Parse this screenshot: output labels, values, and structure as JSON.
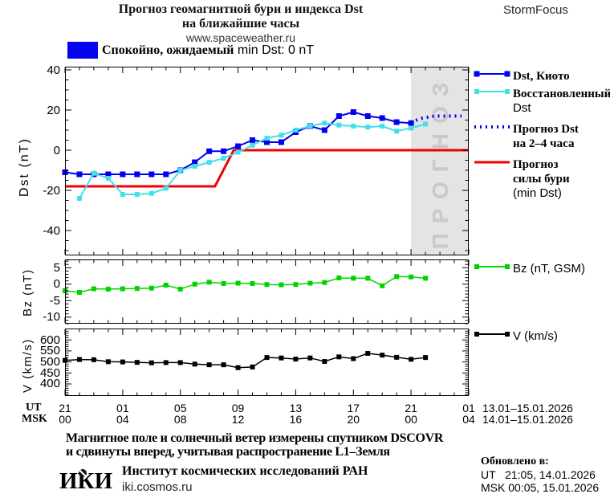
{
  "header": {
    "title_line1": "Прогноз геомагнитной бури и индекса Dst",
    "title_line2": "на ближайшие часы",
    "website": "www.spaceweather.ru",
    "brand": "StormFocus"
  },
  "status": {
    "swatch_color": "#0404ee",
    "ru": "Спокойно, ожидаемый",
    "en": "min Dst: 0 nT"
  },
  "legend_main": {
    "items": [
      {
        "id": "dst-kyoto",
        "style": "blue-squares",
        "color": "#0000f0",
        "lines": [
          "Dst, Киото"
        ]
      },
      {
        "id": "restored-dst",
        "style": "cyan-squares",
        "color": "#44e0e8",
        "lines": [
          "Восстановленный",
          "Dst"
        ]
      },
      {
        "id": "forecast-dst",
        "style": "dotted",
        "color": "#0000f0",
        "lines": [
          "Прогноз Dst",
          "на 2–4 часа"
        ]
      },
      {
        "id": "storm-strength",
        "style": "red-line",
        "color": "#f00000",
        "lines": [
          "Прогноз",
          "силы бури",
          "(min Dst)"
        ]
      }
    ]
  },
  "legend_bz": {
    "id": "bz",
    "style": "green-squares",
    "color": "#00d400",
    "label": "Bz (nT, GSM)"
  },
  "legend_v": {
    "id": "v",
    "style": "black-squares",
    "color": "#000000",
    "label": "V (km/s)"
  },
  "axis": {
    "ut_label": "UT",
    "msk_label": "MSK",
    "ut_ticks": [
      "21",
      "01",
      "05",
      "09",
      "13",
      "17",
      "21",
      "01"
    ],
    "msk_ticks": [
      "00",
      "04",
      "08",
      "12",
      "16",
      "20",
      "00",
      "04"
    ],
    "ut_dates": "13.01–15.01.2026",
    "msk_dates": "14.01–15.01.2026"
  },
  "footer": {
    "line1": "Магнитное поле и солнечный ветер измерены спутником DSCOVR",
    "line2": "и сдвинуты вперед, учитывая распространение L1–Земля",
    "logo_text": "ИКИ",
    "institute": "Институт космических исследований РАН",
    "website": "iki.cosmos.ru",
    "updated_label": "Обновлено в:",
    "updated_ut": "UT   21:05, 14.01.2026",
    "updated_msk": "MSK 00:05, 15.01.2026"
  },
  "chart_data": {
    "type": "line",
    "x_unit": "hours since 21:00 UT 13.01.2026",
    "x_range_hours": [
      0,
      28
    ],
    "band_fill": "#e4e4e4",
    "band_text_color": "#c9c9c9",
    "panels": [
      {
        "id": "dst",
        "ylabel": "Dst (nT)",
        "ylim": [
          41.6,
          -52.4
        ],
        "yticks": [
          40,
          20,
          0,
          -20,
          -40
        ],
        "ytick_labels": [
          "40",
          "20",
          "0",
          "-20",
          "-40"
        ],
        "yminor": 5,
        "forecast_band_hours": [
          24,
          28
        ],
        "band_label": "ПРОГНОЗ",
        "series": [
          {
            "id": "storm-strength-forecast",
            "name": "Прогноз силы бури (min Dst)",
            "style": "line",
            "color": "#f00000",
            "line_width": 3,
            "x": [
              0,
              10.4,
              11.7,
              28
            ],
            "y": [
              -18,
              -18,
              0,
              0
            ]
          },
          {
            "id": "dst-kyoto",
            "name": "Dst, Киото",
            "style": "solid-squares",
            "color": "#0000f0",
            "line_width": 2,
            "marker": 7,
            "x": [
              0,
              1,
              2,
              3,
              4,
              5,
              6,
              7,
              8,
              9,
              10,
              11,
              12,
              13,
              14,
              15,
              16,
              17,
              18,
              19,
              20,
              21,
              22,
              23,
              24
            ],
            "y": [
              -11,
              -12,
              -12,
              -12,
              -12,
              -12,
              -12,
              -12,
              -10,
              -6,
              -0.5,
              -0.5,
              2,
              5,
              4,
              4,
              9,
              12,
              10,
              17,
              19,
              17,
              16,
              14,
              13.5
            ]
          },
          {
            "id": "restored-dst",
            "name": "Восстановленный Dst",
            "style": "solid-squares",
            "color": "#44e0e8",
            "line_width": 2,
            "marker": 6,
            "x": [
              1,
              2,
              3,
              4,
              5,
              6,
              7,
              8,
              9,
              10,
              11,
              12,
              13,
              14,
              15,
              16,
              17,
              18,
              19,
              20,
              21,
              22,
              23,
              24,
              25
            ],
            "y": [
              -24,
              -11.5,
              -14,
              -22,
              -22,
              -21.5,
              -19,
              -10,
              -8,
              -6,
              -4,
              -1,
              2.5,
              6,
              7.5,
              10,
              12,
              13.5,
              12.5,
              12,
              11.5,
              12,
              9.5,
              11,
              13
            ]
          },
          {
            "id": "forecast-dst-dotted",
            "name": "Прогноз Dst на 2–4 часа",
            "style": "dotted",
            "color": "#0000f0",
            "x": [
              24,
              24.4,
              24.8,
              25.2,
              25.6,
              26,
              26.5,
              27,
              27.5
            ],
            "y": [
              13.5,
              15,
              16,
              16.5,
              17,
              17,
              17,
              17,
              17
            ]
          }
        ]
      },
      {
        "id": "bz",
        "ylabel": "Bz (nT)",
        "ylim": [
          7.5,
          -12
        ],
        "yticks": [
          5,
          0,
          -5,
          -10
        ],
        "ytick_labels": [
          "5",
          "0",
          "-5",
          "-10"
        ],
        "yminor": 1,
        "series": [
          {
            "id": "bz-gsm",
            "name": "Bz (nT, GSM)",
            "style": "solid-squares",
            "color": "#00d400",
            "line_width": 1.5,
            "marker": 6,
            "x": [
              0,
              1,
              2,
              3,
              4,
              5,
              6,
              7,
              8,
              9,
              10,
              11,
              12,
              13,
              14,
              15,
              16,
              17,
              18,
              19,
              20,
              21,
              22,
              23,
              24,
              25
            ],
            "y": [
              -2,
              -2.5,
              -1.4,
              -1.5,
              -1.4,
              -1.3,
              -1.2,
              -0.3,
              -1.5,
              0,
              0.6,
              0.2,
              0.3,
              0.2,
              -0.1,
              -0.2,
              -0.1,
              0.3,
              0.5,
              1.9,
              1.8,
              1.8,
              -0.5,
              2.3,
              2.2,
              1.8
            ]
          }
        ]
      },
      {
        "id": "v",
        "ylabel": "V (km/s)",
        "ylim": [
          652,
          345
        ],
        "yticks": [
          600,
          550,
          500,
          450,
          400
        ],
        "ytick_labels": [
          "600",
          "550",
          "500",
          "450",
          "400"
        ],
        "yminor": 10,
        "series": [
          {
            "id": "solar-wind-speed",
            "name": "V (km/s)",
            "style": "solid-squares",
            "color": "#000000",
            "line_width": 1.5,
            "marker": 6,
            "x": [
              0,
              1,
              2,
              3,
              4,
              5,
              6,
              7,
              8,
              9,
              10,
              11,
              12,
              13,
              14,
              15,
              16,
              17,
              18,
              19,
              20,
              21,
              22,
              23,
              24,
              25
            ],
            "y": [
              507,
              511,
              510,
              501,
              500,
              498,
              496,
              497,
              497,
              490,
              487,
              487,
              474,
              477,
              520,
              518,
              513,
              518,
              502,
              523,
              515,
              539,
              531,
              521,
              512,
              520
            ]
          }
        ]
      }
    ]
  }
}
